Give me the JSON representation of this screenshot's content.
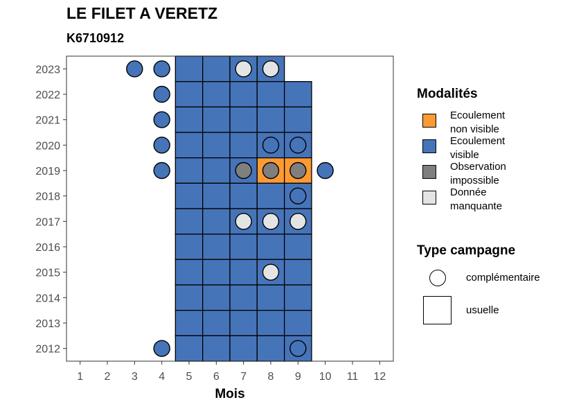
{
  "title": "LE FILET A VERETZ",
  "subtitle": "K6710912",
  "chart_data": {
    "type": "heatmap",
    "xlabel": "Mois",
    "ylabel": "",
    "x_ticks": [
      1,
      2,
      3,
      4,
      5,
      6,
      7,
      8,
      9,
      10,
      11,
      12
    ],
    "y_ticks": [
      2012,
      2013,
      2014,
      2015,
      2016,
      2017,
      2018,
      2019,
      2020,
      2021,
      2022,
      2023
    ],
    "xlim": [
      0.5,
      12.5
    ],
    "ylim": [
      2011.5,
      2023.5
    ],
    "grid": false,
    "legend_position": "right",
    "colors": {
      "Ecoulement non visible": "#fd9a33",
      "Ecoulement visible": "#4674b9",
      "Observation impossible": "#7f7f7f",
      "Donnée manquante": "#e4e4e4"
    },
    "tiles_usuelle": [
      {
        "year": 2023,
        "month": 5,
        "modalite": "Ecoulement visible"
      },
      {
        "year": 2023,
        "month": 6,
        "modalite": "Ecoulement visible"
      },
      {
        "year": 2023,
        "month": 7,
        "modalite": "Ecoulement visible"
      },
      {
        "year": 2023,
        "month": 8,
        "modalite": "Ecoulement visible"
      },
      {
        "year": 2022,
        "month": 5,
        "modalite": "Ecoulement visible"
      },
      {
        "year": 2022,
        "month": 6,
        "modalite": "Ecoulement visible"
      },
      {
        "year": 2022,
        "month": 7,
        "modalite": "Ecoulement visible"
      },
      {
        "year": 2022,
        "month": 8,
        "modalite": "Ecoulement visible"
      },
      {
        "year": 2022,
        "month": 9,
        "modalite": "Ecoulement visible"
      },
      {
        "year": 2021,
        "month": 5,
        "modalite": "Ecoulement visible"
      },
      {
        "year": 2021,
        "month": 6,
        "modalite": "Ecoulement visible"
      },
      {
        "year": 2021,
        "month": 7,
        "modalite": "Ecoulement visible"
      },
      {
        "year": 2021,
        "month": 8,
        "modalite": "Ecoulement visible"
      },
      {
        "year": 2021,
        "month": 9,
        "modalite": "Ecoulement visible"
      },
      {
        "year": 2020,
        "month": 5,
        "modalite": "Ecoulement visible"
      },
      {
        "year": 2020,
        "month": 6,
        "modalite": "Ecoulement visible"
      },
      {
        "year": 2020,
        "month": 7,
        "modalite": "Ecoulement visible"
      },
      {
        "year": 2020,
        "month": 8,
        "modalite": "Ecoulement visible"
      },
      {
        "year": 2020,
        "month": 9,
        "modalite": "Ecoulement visible"
      },
      {
        "year": 2019,
        "month": 5,
        "modalite": "Ecoulement visible"
      },
      {
        "year": 2019,
        "month": 6,
        "modalite": "Ecoulement visible"
      },
      {
        "year": 2019,
        "month": 7,
        "modalite": "Ecoulement visible"
      },
      {
        "year": 2019,
        "month": 8,
        "modalite": "Ecoulement non visible"
      },
      {
        "year": 2019,
        "month": 9,
        "modalite": "Ecoulement non visible"
      },
      {
        "year": 2018,
        "month": 5,
        "modalite": "Ecoulement visible"
      },
      {
        "year": 2018,
        "month": 6,
        "modalite": "Ecoulement visible"
      },
      {
        "year": 2018,
        "month": 7,
        "modalite": "Ecoulement visible"
      },
      {
        "year": 2018,
        "month": 8,
        "modalite": "Ecoulement visible"
      },
      {
        "year": 2018,
        "month": 9,
        "modalite": "Ecoulement visible"
      },
      {
        "year": 2017,
        "month": 5,
        "modalite": "Ecoulement visible"
      },
      {
        "year": 2017,
        "month": 6,
        "modalite": "Ecoulement visible"
      },
      {
        "year": 2017,
        "month": 7,
        "modalite": "Ecoulement visible"
      },
      {
        "year": 2017,
        "month": 8,
        "modalite": "Ecoulement visible"
      },
      {
        "year": 2017,
        "month": 9,
        "modalite": "Ecoulement visible"
      },
      {
        "year": 2016,
        "month": 5,
        "modalite": "Ecoulement visible"
      },
      {
        "year": 2016,
        "month": 6,
        "modalite": "Ecoulement visible"
      },
      {
        "year": 2016,
        "month": 7,
        "modalite": "Ecoulement visible"
      },
      {
        "year": 2016,
        "month": 8,
        "modalite": "Ecoulement visible"
      },
      {
        "year": 2016,
        "month": 9,
        "modalite": "Ecoulement visible"
      },
      {
        "year": 2015,
        "month": 5,
        "modalite": "Ecoulement visible"
      },
      {
        "year": 2015,
        "month": 6,
        "modalite": "Ecoulement visible"
      },
      {
        "year": 2015,
        "month": 7,
        "modalite": "Ecoulement visible"
      },
      {
        "year": 2015,
        "month": 8,
        "modalite": "Ecoulement visible"
      },
      {
        "year": 2015,
        "month": 9,
        "modalite": "Ecoulement visible"
      },
      {
        "year": 2014,
        "month": 5,
        "modalite": "Ecoulement visible"
      },
      {
        "year": 2014,
        "month": 6,
        "modalite": "Ecoulement visible"
      },
      {
        "year": 2014,
        "month": 7,
        "modalite": "Ecoulement visible"
      },
      {
        "year": 2014,
        "month": 8,
        "modalite": "Ecoulement visible"
      },
      {
        "year": 2014,
        "month": 9,
        "modalite": "Ecoulement visible"
      },
      {
        "year": 2013,
        "month": 5,
        "modalite": "Ecoulement visible"
      },
      {
        "year": 2013,
        "month": 6,
        "modalite": "Ecoulement visible"
      },
      {
        "year": 2013,
        "month": 7,
        "modalite": "Ecoulement visible"
      },
      {
        "year": 2013,
        "month": 8,
        "modalite": "Ecoulement visible"
      },
      {
        "year": 2013,
        "month": 9,
        "modalite": "Ecoulement visible"
      },
      {
        "year": 2012,
        "month": 5,
        "modalite": "Ecoulement visible"
      },
      {
        "year": 2012,
        "month": 6,
        "modalite": "Ecoulement visible"
      },
      {
        "year": 2012,
        "month": 7,
        "modalite": "Ecoulement visible"
      },
      {
        "year": 2012,
        "month": 8,
        "modalite": "Ecoulement visible"
      },
      {
        "year": 2012,
        "month": 9,
        "modalite": "Ecoulement visible"
      }
    ],
    "points_complementaire": [
      {
        "year": 2023,
        "month": 3,
        "modalite": "Ecoulement visible"
      },
      {
        "year": 2023,
        "month": 4,
        "modalite": "Ecoulement visible"
      },
      {
        "year": 2023,
        "month": 7,
        "modalite": "Donnée manquante"
      },
      {
        "year": 2023,
        "month": 8,
        "modalite": "Donnée manquante"
      },
      {
        "year": 2022,
        "month": 4,
        "modalite": "Ecoulement visible"
      },
      {
        "year": 2021,
        "month": 4,
        "modalite": "Ecoulement visible"
      },
      {
        "year": 2020,
        "month": 4,
        "modalite": "Ecoulement visible"
      },
      {
        "year": 2020,
        "month": 8,
        "modalite": "Ecoulement visible"
      },
      {
        "year": 2020,
        "month": 9,
        "modalite": "Ecoulement visible"
      },
      {
        "year": 2019,
        "month": 4,
        "modalite": "Ecoulement visible"
      },
      {
        "year": 2019,
        "month": 7,
        "modalite": "Observation impossible"
      },
      {
        "year": 2019,
        "month": 8,
        "modalite": "Observation impossible"
      },
      {
        "year": 2019,
        "month": 9,
        "modalite": "Observation impossible"
      },
      {
        "year": 2019,
        "month": 10,
        "modalite": "Ecoulement visible"
      },
      {
        "year": 2018,
        "month": 9,
        "modalite": "Ecoulement visible"
      },
      {
        "year": 2017,
        "month": 7,
        "modalite": "Donnée manquante"
      },
      {
        "year": 2017,
        "month": 8,
        "modalite": "Donnée manquante"
      },
      {
        "year": 2017,
        "month": 9,
        "modalite": "Donnée manquante"
      },
      {
        "year": 2015,
        "month": 8,
        "modalite": "Donnée manquante"
      },
      {
        "year": 2012,
        "month": 4,
        "modalite": "Ecoulement visible"
      },
      {
        "year": 2012,
        "month": 9,
        "modalite": "Ecoulement visible"
      }
    ]
  },
  "legend": {
    "modalites_title": "Modalités",
    "modalites": [
      {
        "label_line1": "Ecoulement",
        "label_line2": "non visible",
        "color": "#fd9a33"
      },
      {
        "label_line1": "Ecoulement",
        "label_line2": "visible",
        "color": "#4674b9"
      },
      {
        "label_line1": "Observation",
        "label_line2": "impossible",
        "color": "#7f7f7f"
      },
      {
        "label_line1": "Donnée",
        "label_line2": "manquante",
        "color": "#e4e4e4"
      }
    ],
    "type_title": "Type campagne",
    "types": [
      {
        "label": "complémentaire",
        "shape": "circle"
      },
      {
        "label": "usuelle",
        "shape": "square"
      }
    ]
  }
}
